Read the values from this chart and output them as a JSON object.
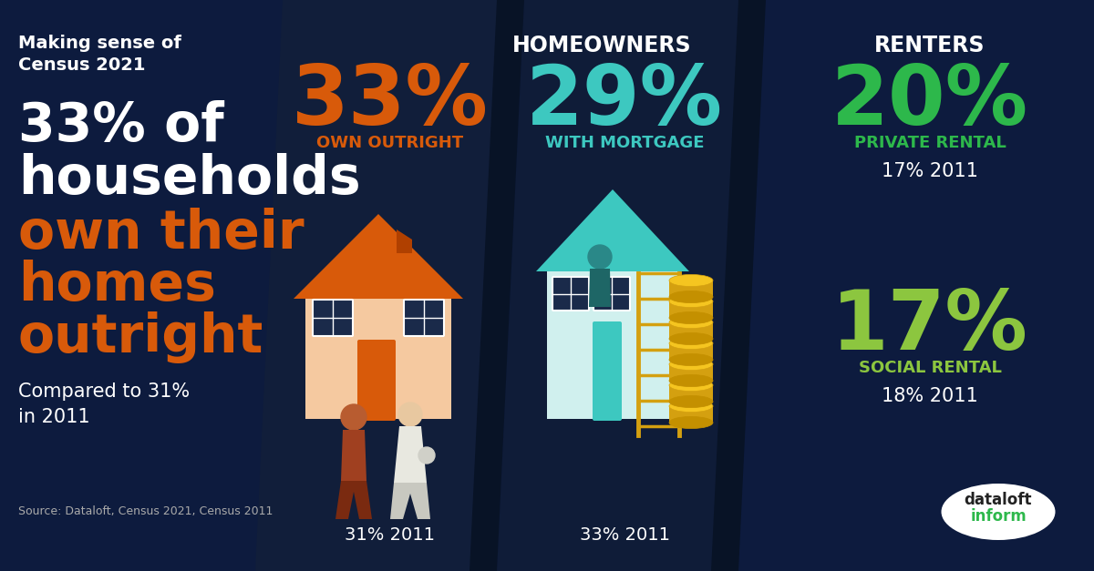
{
  "bg_color": "#0d1b3e",
  "left_panel": {
    "title_line1": "Making sense of",
    "title_line2": "Census 2021",
    "headline_line1": "33% of",
    "headline_line2": "households",
    "headline_line3_orange": "own their",
    "headline_line4_orange": "homes",
    "headline_line5_orange": "outright",
    "subtext": "Compared to 31%\nin 2011",
    "source": "Source: Dataloft, Census 2021, Census 2011"
  },
  "homeowners_label": "HOMEOWNERS",
  "col1": {
    "pct": "33%",
    "label": "OWN OUTRIGHT",
    "color": "#d85a0a",
    "old_pct": "31% 2011"
  },
  "col2": {
    "pct": "29%",
    "label": "WITH MORTGAGE",
    "color": "#3dc8c0",
    "old_pct": "33% 2011"
  },
  "renters_label": "RENTERS",
  "col3": {
    "pct": "20%",
    "label": "PRIVATE RENTAL",
    "color": "#2db84b",
    "old_pct": "17% 2011"
  },
  "col4": {
    "pct": "17%",
    "label": "SOCIAL RENTAL",
    "color": "#8cc63f",
    "old_pct": "18% 2011"
  },
  "white": "#ffffff",
  "light_gray": "#aaaaaa",
  "orange": "#d85a0a",
  "teal": "#3dc8c0",
  "green_bright": "#2db84b",
  "green_light": "#8cc63f",
  "panel1_color": "#111e3a",
  "panel2_color": "#0f1c38",
  "divider_color": "#081326",
  "coin_gold": "#f5c520",
  "coin_dark": "#c49000",
  "coin_mid": "#d4a010"
}
